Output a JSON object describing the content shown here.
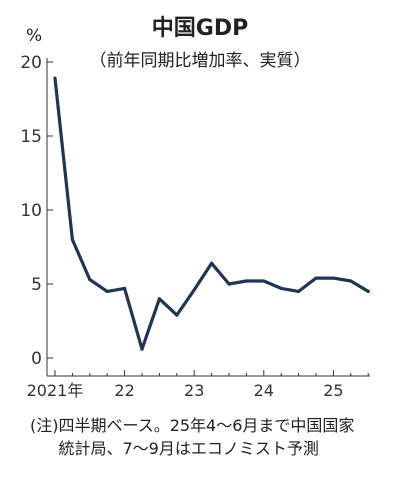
{
  "chart_data": {
    "type": "line",
    "title": "中国GDP",
    "subtitle": "（前年同期比増加率、実質）",
    "unit": "%",
    "x": [
      "2021Q1",
      "2021Q2",
      "2021Q3",
      "2021Q4",
      "2022Q1",
      "2022Q2",
      "2022Q3",
      "2022Q4",
      "2023Q1",
      "2023Q2",
      "2023Q3",
      "2023Q4",
      "2024Q1",
      "2024Q2",
      "2024Q3",
      "2024Q4",
      "2025Q1",
      "2025Q2",
      "2025Q3"
    ],
    "series": [
      {
        "values": [
          18.9,
          8.0,
          5.3,
          4.5,
          4.7,
          0.6,
          4.0,
          2.9,
          4.6,
          6.4,
          5.0,
          5.2,
          5.2,
          4.7,
          4.5,
          5.4,
          5.4,
          5.2,
          4.5
        ]
      }
    ],
    "ylim": [
      0,
      20
    ],
    "yticks": [
      "0",
      "5",
      "10",
      "15",
      "20"
    ],
    "xticks": [
      {
        "label": "2021年",
        "at": "2021Q1"
      },
      {
        "label": "22",
        "at": "2022Q1"
      },
      {
        "label": "23",
        "at": "2023Q1"
      },
      {
        "label": "24",
        "at": "2024Q1"
      },
      {
        "label": "25",
        "at": "2025Q1"
      }
    ],
    "line_color": "#1f3550",
    "grid": false
  },
  "note": {
    "mark": "(注)",
    "text": "四半期ベース。25年4～6月まで中国国家統計局、7～9月はエコノミスト予測"
  }
}
